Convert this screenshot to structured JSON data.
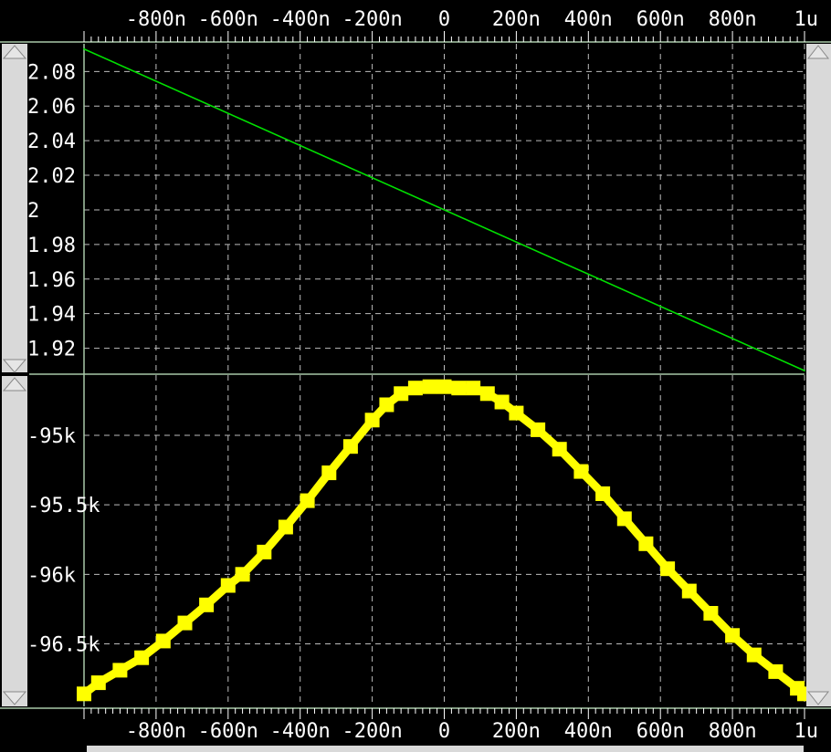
{
  "chart_data": {
    "type": "line",
    "x_ticks": [
      {
        "value": -0.8,
        "label": "-800n"
      },
      {
        "value": -0.6,
        "label": "-600n"
      },
      {
        "value": -0.4,
        "label": "-400n"
      },
      {
        "value": -0.2,
        "label": "-200n"
      },
      {
        "value": 0,
        "label": "0"
      },
      {
        "value": 0.2,
        "label": "200n"
      },
      {
        "value": 0.4,
        "label": "400n"
      },
      {
        "value": 0.6,
        "label": "600n"
      },
      {
        "value": 0.8,
        "label": "800n"
      },
      {
        "value": 1.0,
        "label": "1u"
      }
    ],
    "xlim": [
      -1.0,
      1.0
    ],
    "panels": [
      {
        "ylim": [
          1.905,
          2.096
        ],
        "y_ticks": [
          {
            "value": 2.08,
            "label": "2.08"
          },
          {
            "value": 2.06,
            "label": "2.06"
          },
          {
            "value": 2.04,
            "label": "2.04"
          },
          {
            "value": 2.02,
            "label": "2.02"
          },
          {
            "value": 2.0,
            "label": "2"
          },
          {
            "value": 1.98,
            "label": "1.98"
          },
          {
            "value": 1.96,
            "label": "1.96"
          },
          {
            "value": 1.94,
            "label": "1.94"
          },
          {
            "value": 1.92,
            "label": "1.92"
          }
        ],
        "series": [
          {
            "color": "#00e000",
            "x": [
              -1.0,
              1.0
            ],
            "y": [
              2.093,
              1.907
            ]
          }
        ]
      },
      {
        "ylim": [
          -96.95,
          -94.56
        ],
        "y_ticks": [
          {
            "value": -95.0,
            "label": "-95k"
          },
          {
            "value": -95.5,
            "label": "-95.5k"
          },
          {
            "value": -96.0,
            "label": "-96k"
          },
          {
            "value": -96.5,
            "label": "-96.5k"
          }
        ],
        "series": [
          {
            "color": "#ffff00",
            "x": [
              -1.0,
              -0.96,
              -0.9,
              -0.84,
              -0.78,
              -0.72,
              -0.66,
              -0.6,
              -0.56,
              -0.5,
              -0.44,
              -0.38,
              -0.32,
              -0.26,
              -0.2,
              -0.16,
              -0.12,
              -0.08,
              -0.04,
              0.0,
              0.04,
              0.08,
              0.12,
              0.16,
              0.2,
              0.26,
              0.32,
              0.38,
              0.44,
              0.5,
              0.56,
              0.62,
              0.68,
              0.74,
              0.8,
              0.86,
              0.92,
              0.98,
              1.0
            ],
            "y": [
              -96.86,
              -96.78,
              -96.69,
              -96.6,
              -96.48,
              -96.35,
              -96.22,
              -96.08,
              -96.0,
              -95.84,
              -95.66,
              -95.47,
              -95.27,
              -95.08,
              -94.89,
              -94.78,
              -94.7,
              -94.66,
              -94.65,
              -94.65,
              -94.66,
              -94.66,
              -94.7,
              -94.76,
              -94.84,
              -94.96,
              -95.1,
              -95.26,
              -95.42,
              -95.6,
              -95.78,
              -95.96,
              -96.12,
              -96.28,
              -96.44,
              -96.58,
              -96.7,
              -96.82,
              -96.86
            ]
          }
        ]
      }
    ]
  }
}
